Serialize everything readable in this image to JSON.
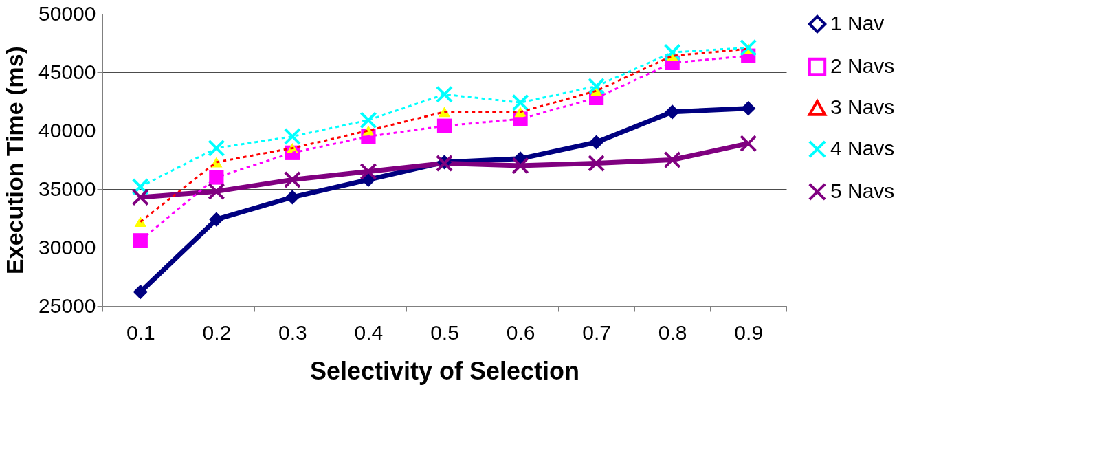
{
  "chart_data": {
    "type": "line",
    "xlabel": "Selectivity of Selection",
    "ylabel": "Execution Time (ms)",
    "categories": [
      "0.1",
      "0.2",
      "0.3",
      "0.4",
      "0.5",
      "0.6",
      "0.7",
      "0.8",
      "0.9"
    ],
    "series": [
      {
        "name": "1 Nav",
        "color": "#000080",
        "marker": "diamond",
        "line_style": "solid",
        "values": [
          26200,
          32400,
          34300,
          35800,
          37300,
          37600,
          39000,
          41600,
          41900
        ]
      },
      {
        "name": "2 Navs",
        "color": "#ff00ff",
        "marker": "square",
        "line_style": "dotted",
        "values": [
          30600,
          36000,
          38100,
          39500,
          40400,
          41000,
          42800,
          45800,
          46400
        ]
      },
      {
        "name": "3 Navs",
        "color": "#ff0000",
        "marker": "triangle",
        "line_style": "dotted",
        "values": [
          32200,
          37300,
          38500,
          40000,
          41600,
          41600,
          43400,
          46400,
          47000
        ]
      },
      {
        "name": "4 Navs",
        "color": "#00ffff",
        "marker": "cross",
        "line_style": "dotted",
        "values": [
          35200,
          38500,
          39500,
          40900,
          43100,
          42400,
          43800,
          46700,
          47100
        ]
      },
      {
        "name": "5 Navs",
        "color": "#800080",
        "marker": "cross",
        "line_style": "solid",
        "values": [
          34300,
          34800,
          35800,
          36500,
          37200,
          37000,
          37200,
          37500,
          38900
        ]
      }
    ],
    "ylim": [
      25000,
      50000
    ],
    "yticks": [
      25000,
      30000,
      35000,
      40000,
      45000,
      50000
    ],
    "grid": "y",
    "legend": "right"
  }
}
